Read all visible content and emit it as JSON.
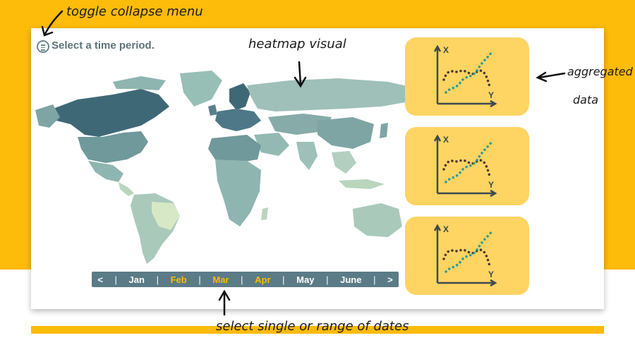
{
  "title": "Select a time period.",
  "menu_icon": "hamburger-circle-icon",
  "timeline": {
    "prev": "<",
    "next": ">",
    "months": [
      "Jan",
      "Feb",
      "Mar",
      "Apr",
      "May",
      "June"
    ],
    "selected": [
      "Feb",
      "Mar",
      "Apr"
    ],
    "selected_color": "#fdbb0a"
  },
  "mini_charts": [
    {
      "x_label": "X",
      "y_label": "Y"
    },
    {
      "x_label": "X",
      "y_label": "Y"
    },
    {
      "x_label": "X",
      "y_label": "Y"
    }
  ],
  "annotations": {
    "toggle": "toggle collapse menu",
    "heatmap": "heatmap visual",
    "aggregated_1": "aggregated",
    "aggregated_2": "data",
    "select": "select single or range of dates"
  },
  "colors": {
    "background": "#fdbb0a",
    "panel": "#fed463",
    "timeline": "#5b7b86",
    "series_dark": "#4a3a2a",
    "series_teal": "#2a9c94"
  }
}
